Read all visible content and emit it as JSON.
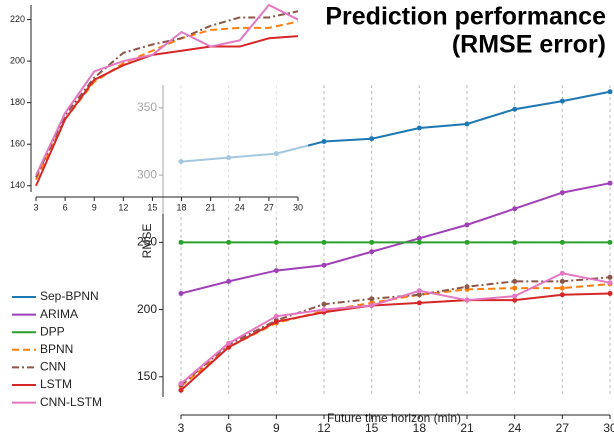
{
  "chart_data": {
    "type": "line",
    "title": "Prediction performance",
    "subtitle": "(RMSE error)",
    "x_label": "Future time horizon (min)",
    "y_label": "RMSE",
    "x": [
      3,
      6,
      9,
      12,
      15,
      18,
      21,
      24,
      27,
      30
    ],
    "xlim": [
      3,
      30
    ],
    "xticks": [
      3,
      6,
      9,
      12,
      15,
      18,
      21,
      24,
      27,
      30
    ],
    "ylim": [
      135,
      367
    ],
    "yticks": [
      150,
      200,
      250,
      300,
      350
    ],
    "grid": "x",
    "legend": "left",
    "series": [
      {
        "name": "Sep-BPNN",
        "color": "#1f77b4",
        "dash": "solid",
        "inset": false,
        "values": [
          310,
          313,
          316,
          325,
          327,
          335,
          338,
          349,
          355,
          362
        ]
      },
      {
        "name": "ARIMA",
        "color": "#a040b8",
        "dash": "solid",
        "inset": false,
        "values": [
          212,
          221,
          229,
          233,
          243,
          253,
          263,
          275,
          287,
          294
        ]
      },
      {
        "name": "DPP",
        "color": "#2ca02c",
        "dash": "solid",
        "inset": false,
        "values": [
          250,
          250,
          250,
          250,
          250,
          250,
          250,
          250,
          250,
          250
        ]
      },
      {
        "name": "BPNN",
        "color": "#ff7f0e",
        "dash": "dashed",
        "inset": true,
        "values": [
          143,
          172,
          190,
          199,
          205,
          211,
          215,
          216,
          216,
          219
        ]
      },
      {
        "name": "CNN",
        "color": "#8c564b",
        "dash": "dashdot",
        "inset": true,
        "values": [
          144,
          174,
          192,
          204,
          208,
          211,
          217,
          221,
          221,
          224
        ]
      },
      {
        "name": "LSTM",
        "color": "#d62728",
        "dash": "solid",
        "inset": true,
        "values": [
          140,
          172,
          191,
          198,
          203,
          205,
          207,
          207,
          211,
          212
        ]
      },
      {
        "name": "CNN-LSTM",
        "color": "#e377c2",
        "dash": "solid",
        "inset": true,
        "values": [
          145,
          175,
          195,
          200,
          203,
          214,
          207,
          210,
          227,
          220
        ]
      }
    ],
    "inset_chart": {
      "xlim": [
        3,
        30
      ],
      "xticks": [
        3,
        6,
        9,
        12,
        15,
        18,
        21,
        24,
        27,
        30
      ],
      "ylim": [
        137,
        227
      ],
      "yticks": [
        140,
        160,
        180,
        200,
        220
      ]
    }
  }
}
